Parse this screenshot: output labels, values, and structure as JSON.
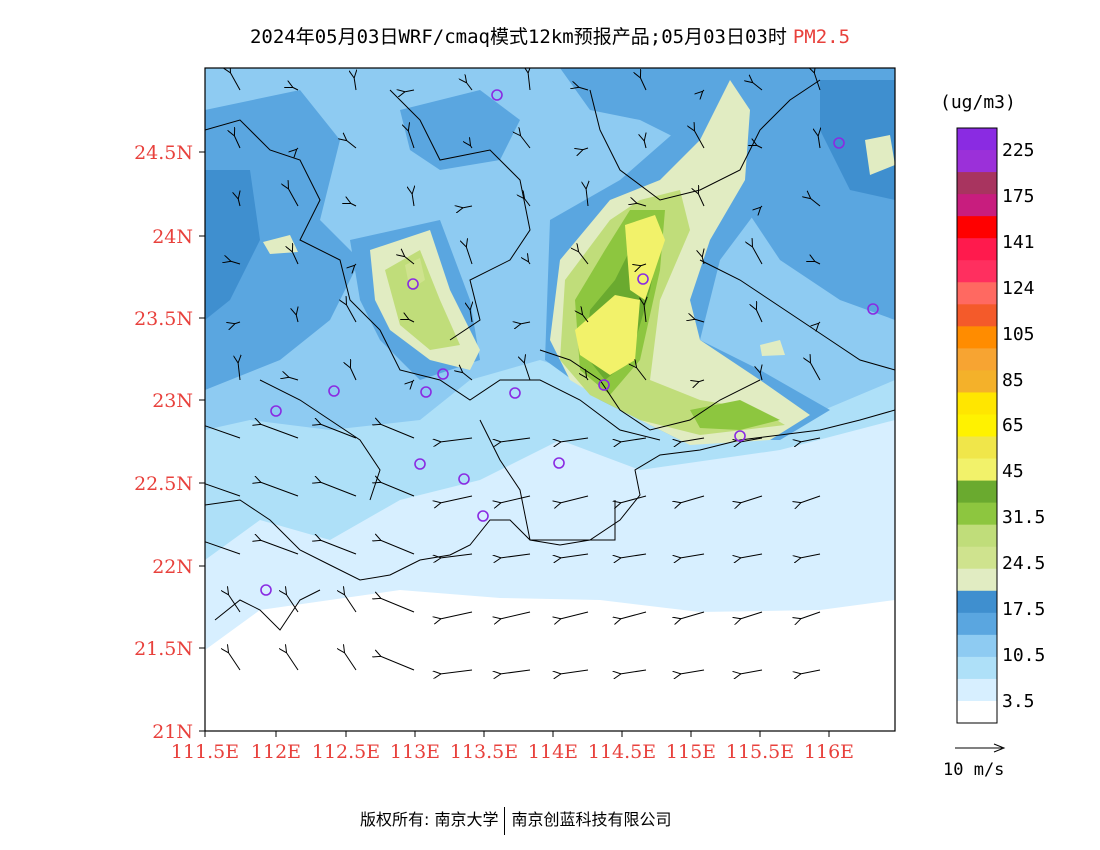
{
  "title": {
    "main": "2024年05月03日WRF/cmaq模式12km预报产品;05月03日03时",
    "pollutant": "PM2.5"
  },
  "axes": {
    "lat_labels": [
      "24.5N",
      "24N",
      "23.5N",
      "23N",
      "22.5N",
      "22N",
      "21.5N",
      "21N"
    ],
    "lon_labels": [
      "111.5E",
      "112E",
      "112.5E",
      "113E",
      "113.5E",
      "114E",
      "114.5E",
      "115E",
      "115.5E",
      "116E"
    ]
  },
  "colorbar": {
    "unit": "(ug/m3)",
    "labels": [
      "225",
      "175",
      "141",
      "124",
      "105",
      "85",
      "65",
      "45",
      "31.5",
      "24.5",
      "17.5",
      "10.5",
      "3.5"
    ],
    "colors": [
      "#8a2be2",
      "#9b30d9",
      "#a8345f",
      "#c81d7e",
      "#ff0000",
      "#ff1a4d",
      "#ff2f5f",
      "#ff6961",
      "#f45a2a",
      "#ff8c00",
      "#f7a432",
      "#f4b12a",
      "#ffe600",
      "#fff200",
      "#f0e64a",
      "#f2f26a",
      "#6aaa2f",
      "#8dc63f",
      "#c0dd7a",
      "#cfe38e",
      "#e1ecc2",
      "#3f8fcf",
      "#5aa6e0",
      "#8ecbf2",
      "#aee0f8",
      "#d7efff",
      "#ffffff"
    ]
  },
  "wind_reference": "10 m/s",
  "footer": {
    "left": "版权所有: 南京大学",
    "right": "南京创蓝科技有限公司"
  },
  "colors": {
    "accent": "#e8413c",
    "sea": "#ffffff"
  }
}
